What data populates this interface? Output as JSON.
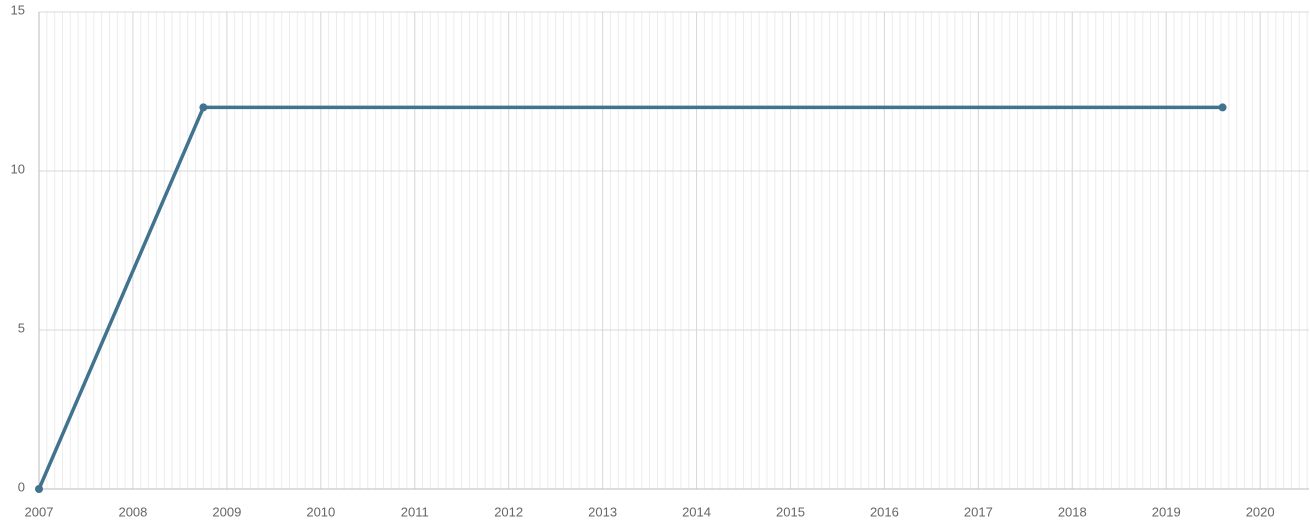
{
  "chart_data": {
    "type": "line",
    "x": [
      2007,
      2008.75,
      2019.6
    ],
    "series": [
      {
        "color": "#41738f",
        "values": [
          0,
          12,
          12
        ]
      }
    ],
    "xlim": [
      2007,
      2020.52
    ],
    "xticks": [
      2007,
      2008,
      2009,
      2010,
      2011,
      2012,
      2013,
      2014,
      2015,
      2016,
      2017,
      2018,
      2019,
      2020
    ],
    "ylim": [
      0,
      15
    ],
    "yticks": [
      0,
      5,
      10,
      15
    ],
    "grid": true
  }
}
